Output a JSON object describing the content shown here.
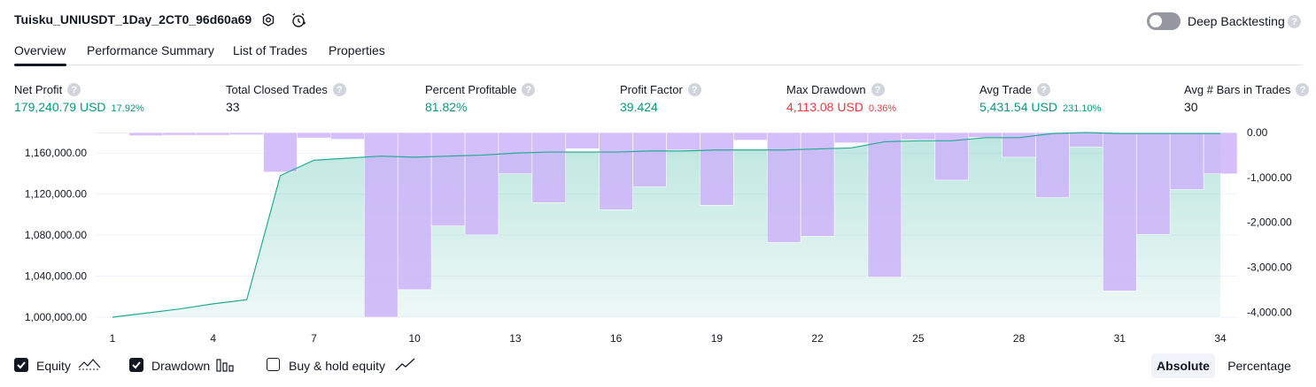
{
  "header": {
    "title": "Tuisku_UNIUSDT_1Day_2CT0_96d60a69",
    "settings_icon": "gear-icon",
    "alert_icon": "alarm-clock-icon",
    "deep_backtesting_label": "Deep Backtesting",
    "deep_backtesting_enabled": false,
    "help_glyph": "?"
  },
  "tabs": [
    {
      "label": "Overview",
      "active": true
    },
    {
      "label": "Performance Summary",
      "active": false
    },
    {
      "label": "List of Trades",
      "active": false
    },
    {
      "label": "Properties",
      "active": false
    }
  ],
  "metrics": [
    {
      "label": "Net Profit",
      "value": "179,240.79 USD",
      "sub": "17.92%",
      "color": "#089981"
    },
    {
      "label": "Total Closed Trades",
      "value": "33",
      "sub": "",
      "color": "#131722"
    },
    {
      "label": "Percent Profitable",
      "value": "81.82%",
      "sub": "",
      "color": "#089981"
    },
    {
      "label": "Profit Factor",
      "value": "39.424",
      "sub": "",
      "color": "#089981"
    },
    {
      "label": "Max Drawdown",
      "value": "4,113.08 USD",
      "sub": "0.36%",
      "color": "#f23645"
    },
    {
      "label": "Avg Trade",
      "value": "5,431.54 USD",
      "sub": "231.10%",
      "color": "#089981"
    },
    {
      "label": "Avg # Bars in Trades",
      "value": "30",
      "sub": "",
      "color": "#131722"
    }
  ],
  "chart_data": {
    "type": "line+bar",
    "x": [
      1,
      2,
      3,
      4,
      5,
      6,
      7,
      8,
      9,
      10,
      11,
      12,
      13,
      14,
      15,
      16,
      17,
      18,
      19,
      20,
      21,
      22,
      23,
      24,
      25,
      26,
      27,
      28,
      29,
      30,
      31,
      32,
      33,
      34
    ],
    "x_ticks": [
      "1",
      "4",
      "7",
      "10",
      "13",
      "16",
      "19",
      "22",
      "25",
      "28",
      "31",
      "34"
    ],
    "series": [
      {
        "name": "Equity",
        "axis": "left",
        "values": [
          1000000,
          1004000,
          1008000,
          1013000,
          1017000,
          1138000,
          1153000,
          1155000,
          1157000,
          1156000,
          1157000,
          1158000,
          1160000,
          1161000,
          1161000,
          1161000,
          1162000,
          1162000,
          1163000,
          1163000,
          1163000,
          1164000,
          1165000,
          1171000,
          1172000,
          1172000,
          1175000,
          1175000,
          1179000,
          1180000,
          1179000,
          1179000,
          1179000,
          1179000
        ]
      },
      {
        "name": "Drawdown",
        "axis": "right",
        "values": [
          -10,
          -70,
          -60,
          -60,
          -50,
          -880,
          -120,
          -150,
          -4113,
          -3500,
          -2080,
          -2280,
          -920,
          -1560,
          -360,
          -1720,
          -1210,
          -390,
          -1620,
          -170,
          -2450,
          -2310,
          -230,
          -3220,
          -160,
          -1060,
          -110,
          -550,
          -1450,
          -320,
          -3530,
          -2270,
          -1270,
          -920
        ]
      }
    ],
    "left_axis_ticks": [
      "1,000,000.00",
      "1,040,000.00",
      "1,080,000.00",
      "1,120,000.00",
      "1,160,000.00"
    ],
    "left_ylim": [
      1000000,
      1180000
    ],
    "right_axis_ticks": [
      "0.00",
      "-1,000.00",
      "-2,000.00",
      "-3,000.00",
      "-4,000.00"
    ],
    "right_ylim": [
      -4113.08,
      0
    ],
    "colors": {
      "equity_line": "#22ab94",
      "drawdown_bar": "#cdb4f9",
      "grid": "#f0f3fa"
    }
  },
  "legend": {
    "equity": {
      "label": "Equity",
      "checked": true,
      "icon": "equity-line-icon"
    },
    "drawdown": {
      "label": "Drawdown",
      "checked": true,
      "icon": "drawdown-bars-icon"
    },
    "buyhold": {
      "label": "Buy & hold equity",
      "checked": false,
      "icon": "buyhold-line-icon"
    }
  },
  "mode": {
    "absolute_label": "Absolute",
    "percentage_label": "Percentage",
    "selected": "Absolute"
  }
}
